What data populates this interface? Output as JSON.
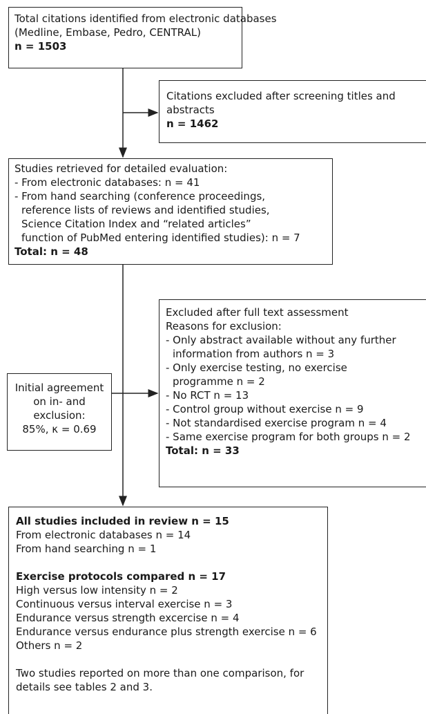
{
  "box_total": {
    "lines": [
      "Total citations identified from electronic databases",
      "(Medline, Embase, Pedro, CENTRAL)"
    ],
    "count": "n = 1503"
  },
  "box_excluded_screening": {
    "lines": [
      "Citations excluded after screening titles and",
      "abstracts"
    ],
    "count": "n = 1462"
  },
  "box_retrieved": {
    "title": "Studies retrieved for detailed evaluation:",
    "items": [
      "- From electronic databases: n = 41",
      "- From hand searching (conference proceedings,",
      "reference lists of reviews and identified studies,",
      "Science Citation Index and “related articles”",
      "function of PubMed entering identified studies): n = 7"
    ],
    "total": "Total: n = 48"
  },
  "box_agreement": {
    "lines": [
      "Initial agreement",
      "on in- and",
      "exclusion:",
      "85%, κ = 0.69"
    ]
  },
  "box_excluded_fulltext": {
    "title": "Excluded after full text assessment",
    "subtitle": "Reasons for exclusion:",
    "items": [
      "- Only abstract available without any further",
      "information from authors n = 3",
      "- Only exercise testing, no exercise",
      "programme n = 2",
      "- No RCT n = 13",
      "- Control group without exercise n = 9",
      "- Not standardised exercise program n = 4",
      "- Same exercise program for both groups n = 2"
    ],
    "total": "Total: n = 33"
  },
  "box_included": {
    "heading1": "All studies included in review n = 15",
    "sub1": [
      "From electronic databases n = 14",
      "From hand searching n = 1"
    ],
    "heading2": "Exercise protocols compared n = 17",
    "sub2": [
      "High versus low intensity n = 2",
      "Continuous versus interval exercise n = 3",
      "Endurance versus strength excercise n = 4",
      "Endurance versus endurance plus strength exercise n = 6",
      "Others n = 2"
    ],
    "note": [
      "Two studies reported on more than one comparison, for",
      "details see tables 2 and 3."
    ]
  }
}
